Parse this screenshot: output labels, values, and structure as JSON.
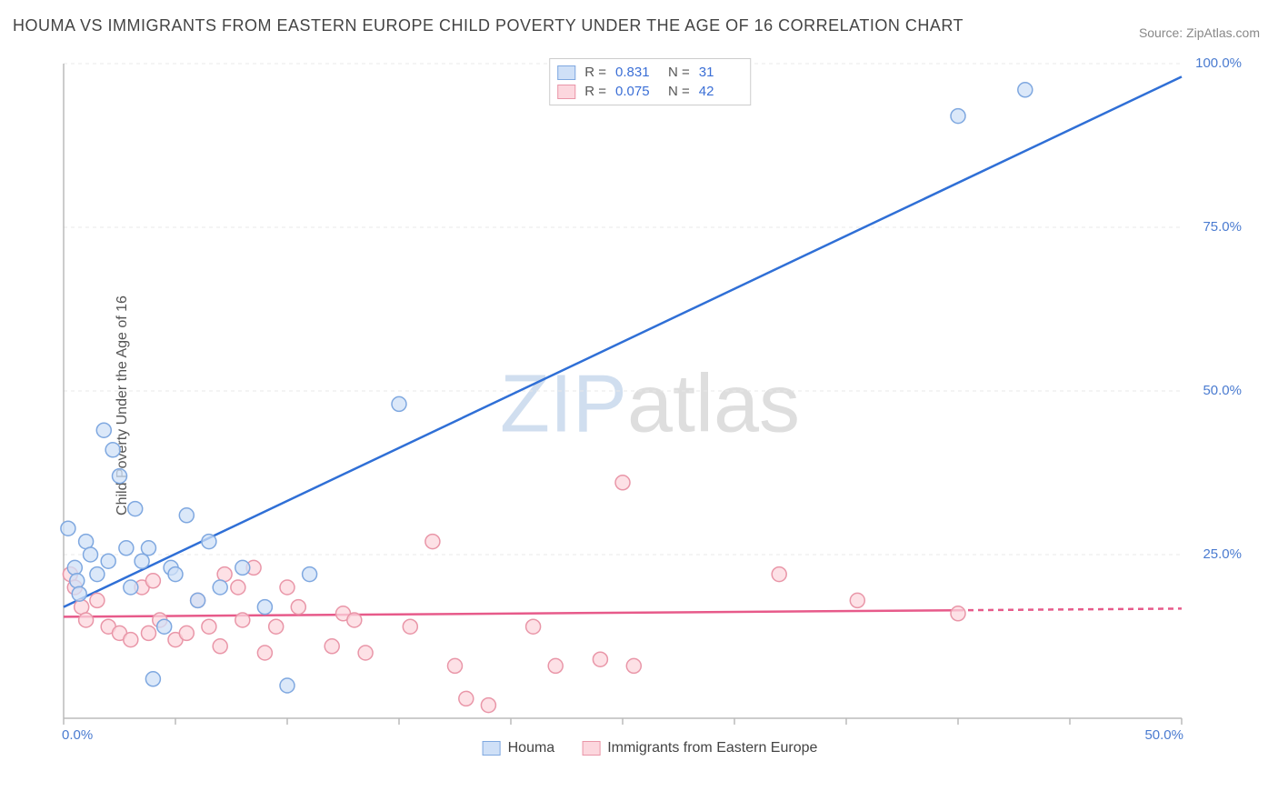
{
  "title": "HOUMA VS IMMIGRANTS FROM EASTERN EUROPE CHILD POVERTY UNDER THE AGE OF 16 CORRELATION CHART",
  "source": "Source: ZipAtlas.com",
  "y_axis_label": "Child Poverty Under the Age of 16",
  "watermark": {
    "zip": "ZIP",
    "atlas": "atlas"
  },
  "chart": {
    "type": "scatter",
    "background_color": "#ffffff",
    "grid_color": "#e8e8e8",
    "axis_color": "#bbbbbb",
    "tick_label_color": "#4a7bd0",
    "xlim": [
      0,
      50
    ],
    "ylim": [
      0,
      100
    ],
    "x_ticks": [
      0,
      5,
      10,
      15,
      20,
      25,
      30,
      35,
      40,
      45,
      50
    ],
    "x_tick_labels": {
      "0": "0.0%",
      "50": "50.0%"
    },
    "y_ticks": [
      0,
      25,
      50,
      75,
      100
    ],
    "y_tick_labels": {
      "25": "25.0%",
      "50": "50.0%",
      "75": "75.0%",
      "100": "100.0%"
    },
    "y_grid_at": [
      25,
      50,
      75,
      100
    ],
    "marker_radius": 8,
    "marker_stroke_width": 1.5,
    "line_width": 2.5,
    "series": [
      {
        "id": "houma",
        "label": "Houma",
        "fill": "#cfe0f7",
        "stroke": "#7fa8e0",
        "line_color": "#2f6fd6",
        "r_value": "0.831",
        "n_value": "31",
        "trend": {
          "x1": 0,
          "y1": 17,
          "x2": 50,
          "y2": 98,
          "dash_after_x": 50
        },
        "points": [
          [
            0.2,
            29
          ],
          [
            0.5,
            23
          ],
          [
            0.6,
            21
          ],
          [
            0.7,
            19
          ],
          [
            1.0,
            27
          ],
          [
            1.2,
            25
          ],
          [
            1.5,
            22
          ],
          [
            1.8,
            44
          ],
          [
            2.0,
            24
          ],
          [
            2.2,
            41
          ],
          [
            2.5,
            37
          ],
          [
            2.8,
            26
          ],
          [
            3.0,
            20
          ],
          [
            3.2,
            32
          ],
          [
            3.5,
            24
          ],
          [
            3.8,
            26
          ],
          [
            4.0,
            6
          ],
          [
            4.5,
            14
          ],
          [
            4.8,
            23
          ],
          [
            5.0,
            22
          ],
          [
            5.5,
            31
          ],
          [
            6.0,
            18
          ],
          [
            6.5,
            27
          ],
          [
            7.0,
            20
          ],
          [
            8.0,
            23
          ],
          [
            9.0,
            17
          ],
          [
            10.0,
            5
          ],
          [
            11.0,
            22
          ],
          [
            15.0,
            48
          ],
          [
            40.0,
            92
          ],
          [
            43.0,
            96
          ]
        ]
      },
      {
        "id": "immigrants",
        "label": "Immigrants from Eastern Europe",
        "fill": "#fcd7de",
        "stroke": "#e996a8",
        "line_color": "#e75a8a",
        "r_value": "0.075",
        "n_value": "42",
        "trend": {
          "x1": 0,
          "y1": 15.5,
          "x2": 40,
          "y2": 16.5,
          "dash_after_x": 40
        },
        "points": [
          [
            0.3,
            22
          ],
          [
            0.5,
            20
          ],
          [
            0.8,
            17
          ],
          [
            1.0,
            15
          ],
          [
            1.5,
            18
          ],
          [
            2.0,
            14
          ],
          [
            2.5,
            13
          ],
          [
            3.0,
            12
          ],
          [
            3.5,
            20
          ],
          [
            3.8,
            13
          ],
          [
            4.0,
            21
          ],
          [
            4.3,
            15
          ],
          [
            5.0,
            12
          ],
          [
            5.5,
            13
          ],
          [
            6.0,
            18
          ],
          [
            6.5,
            14
          ],
          [
            7.0,
            11
          ],
          [
            7.2,
            22
          ],
          [
            7.8,
            20
          ],
          [
            8.0,
            15
          ],
          [
            8.5,
            23
          ],
          [
            9.0,
            10
          ],
          [
            9.5,
            14
          ],
          [
            10.0,
            20
          ],
          [
            10.5,
            17
          ],
          [
            12.0,
            11
          ],
          [
            12.5,
            16
          ],
          [
            13.0,
            15
          ],
          [
            13.5,
            10
          ],
          [
            15.5,
            14
          ],
          [
            16.5,
            27
          ],
          [
            17.5,
            8
          ],
          [
            18.0,
            3
          ],
          [
            19.0,
            2
          ],
          [
            21.0,
            14
          ],
          [
            22.0,
            8
          ],
          [
            24.0,
            9
          ],
          [
            25.0,
            36
          ],
          [
            25.5,
            8
          ],
          [
            32.0,
            22
          ],
          [
            35.5,
            18
          ],
          [
            40.0,
            16
          ]
        ]
      }
    ],
    "legend_top": {
      "r_label": "R  =",
      "n_label": "N  ="
    }
  }
}
